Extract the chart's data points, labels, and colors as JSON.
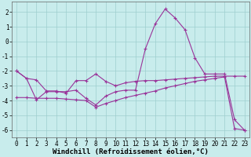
{
  "xlabel": "Windchill (Refroidissement éolien,°C)",
  "background_color": "#c8ecec",
  "grid_color": "#9ecece",
  "line_color": "#993399",
  "xlim": [
    -0.5,
    23.5
  ],
  "ylim": [
    -6.5,
    2.7
  ],
  "xticks": [
    0,
    1,
    2,
    3,
    4,
    5,
    6,
    7,
    8,
    9,
    10,
    11,
    12,
    13,
    14,
    15,
    16,
    17,
    18,
    19,
    20,
    21,
    22,
    23
  ],
  "yticks": [
    -6,
    -5,
    -4,
    -3,
    -2,
    -1,
    0,
    1,
    2
  ],
  "x": [
    0,
    1,
    2,
    3,
    4,
    5,
    6,
    7,
    8,
    9,
    10,
    11,
    12,
    13,
    14,
    15,
    16,
    17,
    18,
    19,
    20,
    21,
    22,
    23
  ],
  "line1": [
    -2.0,
    -2.5,
    -2.6,
    -3.35,
    -3.35,
    -3.5,
    -2.65,
    -2.65,
    -2.2,
    -2.7,
    -3.0,
    -2.8,
    -2.7,
    -2.65,
    -2.65,
    -2.6,
    -2.55,
    -2.5,
    -2.45,
    -2.4,
    -2.35,
    -2.35,
    -2.35,
    -2.35
  ],
  "line2": [
    -2.0,
    -2.5,
    -3.95,
    -3.4,
    -3.4,
    -3.4,
    -3.3,
    -3.85,
    -4.3,
    -3.7,
    -3.4,
    -3.3,
    -3.3,
    -0.5,
    1.2,
    2.2,
    1.6,
    0.8,
    -1.1,
    -2.2,
    -2.2,
    -2.2,
    -5.3,
    -6.0
  ],
  "line3": [
    -3.8,
    -3.8,
    -3.85,
    -3.85,
    -3.85,
    -3.9,
    -3.95,
    -4.0,
    -4.45,
    -4.2,
    -4.0,
    -3.8,
    -3.65,
    -3.5,
    -3.35,
    -3.15,
    -3.0,
    -2.85,
    -2.7,
    -2.6,
    -2.5,
    -2.4,
    -5.9,
    -6.0
  ],
  "tick_fontsize": 5.5,
  "label_fontsize": 6.5
}
